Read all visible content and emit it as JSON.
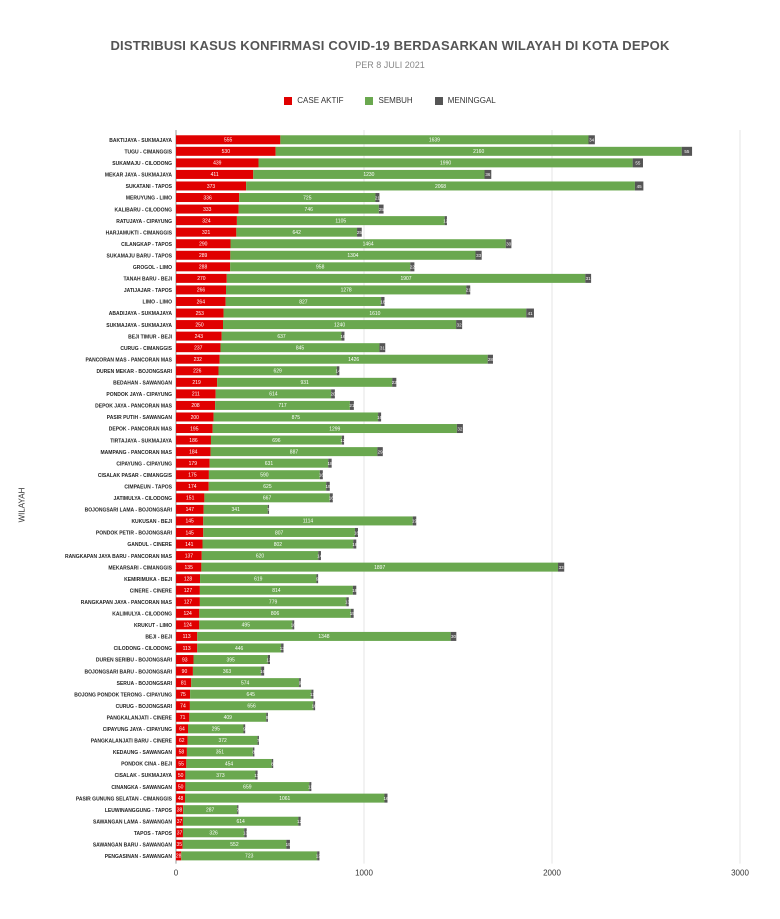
{
  "colors": {
    "active": "#e00000",
    "recovered": "#6aa84f",
    "deaths": "#555555",
    "grid": "#e5e5e5"
  },
  "chart_data": {
    "type": "bar",
    "orientation": "horizontal",
    "stacked": true,
    "title": "DISTRIBUSI KASUS KONFIRMASI COVID-19 BERDASARKAN WILAYAH DI KOTA DEPOK",
    "subtitle": "PER 8 JULI 2021",
    "ylabel": "WILAYAH",
    "xlabel": "",
    "xlim": [
      0,
      3000
    ],
    "xticks": [
      0,
      1000,
      2000,
      3000
    ],
    "grid": true,
    "legend_position": "top",
    "series": [
      {
        "name": "CASE AKTIF",
        "color": "#e00000"
      },
      {
        "name": "SEMBUH",
        "color": "#6aa84f"
      },
      {
        "name": "MENINGGAL",
        "color": "#555555"
      }
    ],
    "categories": [
      "BAKTIJAYA - SUKMAJAYA",
      "TUGU - CIMANGGIS",
      "SUKAMAJU - CILODONG",
      "MEKAR JAYA - SUKMAJAYA",
      "SUKATANI - TAPOS",
      "MERUYUNG - LIMO",
      "KALIBARU - CILODONG",
      "RATUJAYA - CIPAYUNG",
      "HARJAMUKTI - CIMANGGIS",
      "CILANGKAP - TAPOS",
      "SUKAMAJU BARU - TAPOS",
      "GROGOL - LIMO",
      "TANAH BARU - BEJI",
      "JATIJAJAR - TAPOS",
      "LIMO - LIMO",
      "ABADIJAYA - SUKMAJAYA",
      "SUKMAJAYA - SUKMAJAYA",
      "BEJI TIMUR - BEJI",
      "CURUG - CIMANGGIS",
      "PANCORAN MAS - PANCORAN MAS",
      "DUREN MEKAR - BOJONGSARI",
      "BEDAHAN - SAWANGAN",
      "PONDOK JAYA - CIPAYUNG",
      "DEPOK JAYA - PANCORAN MAS",
      "PASIR PUTIH - SAWANGAN",
      "DEPOK - PANCORAN MAS",
      "TIRTAJAYA - SUKMAJAYA",
      "MAMPANG - PANCORAN MAS",
      "CIPAYUNG - CIPAYUNG",
      "CISALAK PASAR - CIMANGGIS",
      "CIMPAEUN - TAPOS",
      "JATIMULYA - CILODONG",
      "BOJONGSARI LAMA - BOJONGSARI",
      "KUKUSAN - BEJI",
      "PONDOK PETIR - BOJONGSARI",
      "GANDUL - CINERE",
      "RANGKAPAN JAYA BARU - PANCORAN MAS",
      "MEKARSARI - CIMANGGIS",
      "KEMIRIMUKA - BEJI",
      "CINERE - CINERE",
      "RANGKAPAN JAYA - PANCORAN MAS",
      "KALIMULYA - CILODONG",
      "KRUKUT - LIMO",
      "BEJI - BEJI",
      "CILODONG - CILODONG",
      "DUREN SERIBU - BOJONGSARI",
      "BOJONGSARI BARU - BOJONGSARI",
      "SERUA - BOJONGSARI",
      "BOJONG PONDOK TERONG - CIPAYUNG",
      "CURUG - BOJONGSARI",
      "PANGKALANJATI - CINERE",
      "CIPAYUNG JAYA - CIPAYUNG",
      "PANGKALANJATI BARU - CINERE",
      "KEDAUNG - SAWANGAN",
      "PONDOK CINA - BEJI",
      "CISALAK - SUKMAJAYA",
      "CINANGKA - SAWANGAN",
      "PASIR GUNUNG SELATAN - CIMANGGIS",
      "LEUWINANGGUNG - TAPOS",
      "SAWANGAN LAMA - SAWANGAN",
      "TAPOS - TAPOS",
      "SAWANGAN BARU - SAWANGAN",
      "PENGASINAN - SAWANGAN"
    ],
    "active": [
      555,
      530,
      439,
      411,
      373,
      336,
      333,
      324,
      321,
      290,
      289,
      288,
      270,
      266,
      264,
      253,
      250,
      243,
      237,
      232,
      226,
      219,
      211,
      208,
      200,
      195,
      186,
      184,
      179,
      175,
      174,
      151,
      147,
      145,
      145,
      141,
      137,
      135,
      128,
      127,
      127,
      124,
      124,
      113,
      113,
      93,
      90,
      81,
      75,
      74,
      71,
      64,
      62,
      58,
      55,
      50,
      50,
      48,
      38,
      37,
      37,
      35,
      28
    ],
    "recovered": [
      1639,
      2160,
      1990,
      1230,
      2068,
      725,
      746,
      1105,
      642,
      1464,
      1304,
      958,
      1907,
      1278,
      827,
      1610,
      1240,
      637,
      845,
      1426,
      629,
      931,
      614,
      717,
      875,
      1299,
      696,
      887,
      631,
      590,
      625,
      667,
      341,
      1114,
      807,
      802,
      620,
      1897,
      619,
      814,
      779,
      806,
      495,
      1348,
      446,
      395,
      363,
      574,
      645,
      656,
      409,
      295,
      372,
      351,
      454,
      373,
      659,
      1061,
      287,
      614,
      326,
      552,
      723
    ],
    "deaths": [
      34,
      55,
      55,
      36,
      45,
      21,
      25,
      12,
      25,
      30,
      33,
      22,
      31,
      21,
      18,
      41,
      32,
      16,
      31,
      28,
      14,
      22,
      20,
      21,
      16,
      32,
      12,
      29,
      18,
      16,
      19,
      16,
      7,
      19,
      16,
      16,
      14,
      33,
      9,
      18,
      13,
      15,
      10,
      30,
      13,
      12,
      16,
      9,
      11,
      10,
      9,
      9,
      7,
      8,
      8,
      11,
      11,
      16,
      7,
      12,
      13,
      19,
      12
    ]
  }
}
